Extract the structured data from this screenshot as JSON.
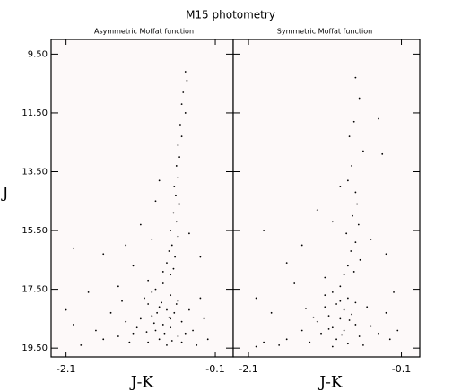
{
  "title": "M15 photometry",
  "chart_data": [
    {
      "type": "scatter",
      "subtitle": "Asymmetric Moffat function",
      "xlabel": "J-K",
      "ylabel": "J",
      "xlim": [
        -2.3,
        0.14
      ],
      "ylim": [
        9.0,
        19.8
      ],
      "y_inverted": true,
      "color": "#000000",
      "xticks": [
        -2.1,
        -0.1
      ],
      "yticks": [
        {
          "value": 9.5,
          "label": "9.50"
        },
        {
          "value": 11.5,
          "label": "11.50"
        },
        {
          "value": 13.5,
          "label": "13.50"
        },
        {
          "value": 15.5,
          "label": "15.50"
        },
        {
          "value": 17.5,
          "label": "17.50"
        },
        {
          "value": 19.5,
          "label": "19.50"
        }
      ],
      "x": [
        -0.5,
        -0.48,
        -0.53,
        -0.55,
        -0.5,
        -0.57,
        -0.55,
        -0.6,
        -0.58,
        -0.62,
        -0.6,
        -0.65,
        -0.63,
        -0.58,
        -0.66,
        -0.62,
        -0.7,
        -0.6,
        -0.68,
        -0.72,
        -0.64,
        -0.75,
        -0.66,
        -0.8,
        -0.7,
        -0.9,
        -1.1,
        -1.3,
        -0.95,
        -1.2,
        -1.6,
        -2.0,
        -0.3,
        -0.45,
        -0.85,
        -1.0,
        -1.4,
        -1.8,
        -2.1,
        -0.8,
        -0.9,
        -0.7,
        -0.6,
        -1.0,
        -0.85,
        -0.75,
        -0.65,
        -0.95,
        -1.1,
        -0.55,
        -0.8,
        -0.7,
        -0.9,
        -1.2,
        -0.6,
        -0.85,
        -1.0,
        -0.75,
        -0.5,
        -1.3,
        -1.4,
        -0.45,
        -0.4,
        -1.5,
        -1.6,
        -0.35,
        -1.05,
        -0.95,
        -0.7,
        -0.78,
        -0.88,
        -0.62,
        -1.15,
        -1.25,
        -0.55,
        -1.7,
        -1.9,
        -0.25,
        -0.3,
        -2.0,
        -0.2,
        -1.35,
        -0.82,
        -0.72,
        -0.92,
        -0.68,
        -1.02
      ],
      "y": [
        10.1,
        10.4,
        10.8,
        11.2,
        11.5,
        11.9,
        12.3,
        12.6,
        13.0,
        13.3,
        13.7,
        14.0,
        14.3,
        14.6,
        14.9,
        15.2,
        15.5,
        15.7,
        16.0,
        16.2,
        16.4,
        16.6,
        16.8,
        16.9,
        17.0,
        14.5,
        15.3,
        16.0,
        15.8,
        16.7,
        16.3,
        16.1,
        16.4,
        15.6,
        13.8,
        17.2,
        17.4,
        17.6,
        18.2,
        17.3,
        17.5,
        17.7,
        17.9,
        18.0,
        18.1,
        18.2,
        18.3,
        18.4,
        18.5,
        18.6,
        18.7,
        18.8,
        18.9,
        19.0,
        19.1,
        19.2,
        19.3,
        19.4,
        19.0,
        18.6,
        19.1,
        18.2,
        18.9,
        18.3,
        19.2,
        19.4,
        17.8,
        17.6,
        18.5,
        19.0,
        18.3,
        18.0,
        18.8,
        19.3,
        19.3,
        18.9,
        19.4,
        18.5,
        17.8,
        18.7,
        19.2,
        17.9,
        17.95,
        18.45,
        18.65,
        19.25,
        18.95
      ]
    },
    {
      "type": "scatter",
      "subtitle": "Symmetric Moffat function",
      "xlabel": "J-K",
      "xlim": [
        -2.3,
        0.14
      ],
      "ylim": [
        9.0,
        19.8
      ],
      "y_inverted": true,
      "color": "#000000",
      "xticks": [
        -2.1,
        -0.1
      ],
      "x": [
        -0.7,
        -0.65,
        -0.72,
        -0.78,
        -0.6,
        -0.75,
        -0.8,
        -0.7,
        -0.68,
        -0.74,
        -0.66,
        -0.82,
        -0.7,
        -0.76,
        -0.64,
        -0.8,
        -0.72,
        -0.85,
        -0.4,
        -0.35,
        -0.9,
        -1.0,
        -1.2,
        -1.4,
        -1.6,
        -1.9,
        -0.3,
        -0.5,
        -1.1,
        -1.5,
        -2.0,
        -0.2,
        -1.8,
        -0.15,
        -0.9,
        -1.0,
        -0.8,
        -0.95,
        -1.1,
        -0.85,
        -0.75,
        -1.05,
        -0.9,
        -1.2,
        -0.7,
        -1.0,
        -0.85,
        -1.15,
        -0.65,
        -0.95,
        -1.3,
        -0.8,
        -1.4,
        -0.6,
        -1.0,
        -0.9,
        -1.25,
        -0.55,
        -1.6,
        -0.5,
        -1.7,
        -0.4,
        -1.9,
        -0.3,
        -2.0,
        -0.25,
        -1.1,
        -0.78,
        -1.35,
        -0.88,
        -1.05,
        -0.7
      ],
      "y": [
        10.3,
        11.0,
        11.8,
        12.3,
        12.8,
        13.3,
        13.8,
        14.2,
        14.6,
        15.0,
        15.3,
        15.6,
        15.9,
        16.2,
        16.5,
        16.7,
        16.9,
        17.0,
        11.7,
        12.9,
        14.0,
        15.2,
        14.8,
        16.0,
        16.6,
        15.5,
        16.3,
        15.8,
        17.1,
        17.3,
        17.8,
        17.6,
        18.3,
        18.9,
        17.4,
        17.6,
        17.8,
        18.0,
        18.1,
        18.2,
        18.35,
        18.4,
        18.5,
        18.6,
        18.7,
        18.8,
        18.9,
        19.0,
        19.1,
        19.2,
        19.3,
        19.35,
        18.9,
        19.4,
        19.45,
        17.9,
        18.45,
        18.1,
        19.2,
        18.75,
        19.4,
        19.0,
        19.3,
        18.3,
        19.45,
        19.2,
        17.7,
        18.55,
        18.15,
        19.05,
        18.85,
        17.95
      ]
    }
  ]
}
